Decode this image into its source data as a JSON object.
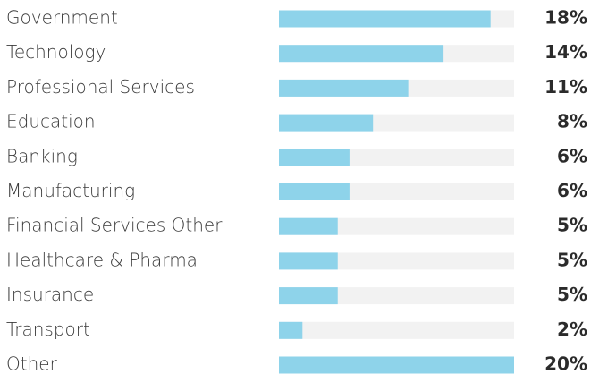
{
  "chart_data": {
    "type": "hbar",
    "categories": [
      "Government",
      "Technology",
      "Professional Services",
      "Education",
      "Banking",
      "Manufacturing",
      "Financial Services Other",
      "Healthcare & Pharma",
      "Insurance",
      "Transport",
      "Other"
    ],
    "values": [
      18,
      14,
      11,
      8,
      6,
      6,
      5,
      5,
      5,
      2,
      20
    ],
    "value_labels": [
      "18%",
      "14%",
      "11%",
      "8%",
      "6%",
      "6%",
      "5%",
      "5%",
      "5%",
      "2%",
      "20%"
    ],
    "color": "#8ed3ea",
    "xlim": [
      0,
      20
    ]
  }
}
